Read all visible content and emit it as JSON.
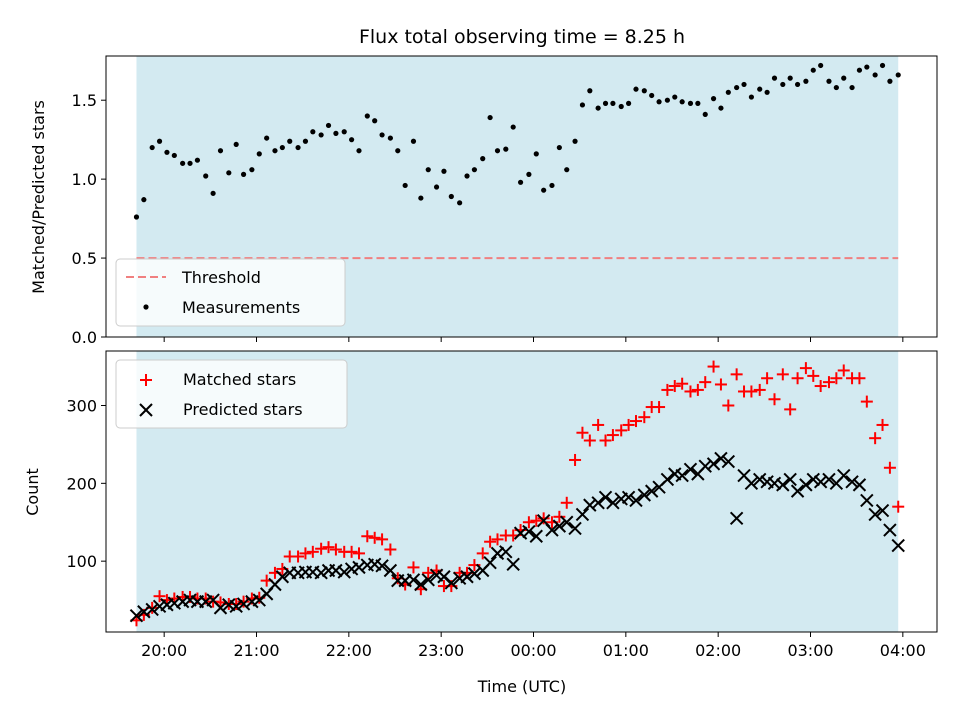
{
  "colors": {
    "band": "#d3eaf1",
    "threshold": "#f08080",
    "matched": "#ff0000",
    "predicted": "#000000",
    "measurement": "#000000"
  },
  "chart_data": [
    {
      "type": "scatter",
      "title": "Flux total observing time = 8.25 h",
      "xlabel": "",
      "ylabel": "Matched/Predicted stars",
      "ylim": [
        0,
        1.78
      ],
      "yticks": [
        "0.0",
        "0.5",
        "1.0",
        "1.5"
      ],
      "yticks_values": [
        0,
        0.5,
        1.0,
        1.5
      ],
      "xlim_hours": [
        19.37,
        28.37
      ],
      "band_hours": [
        19.7,
        27.95
      ],
      "threshold": 0.5,
      "legend": {
        "placement": "lower-left",
        "entries": [
          "Threshold",
          "Measurements"
        ]
      },
      "series": [
        {
          "name": "Measurements",
          "marker": "dot",
          "x": [
            19.7,
            19.78,
            19.87,
            19.95,
            20.03,
            20.11,
            20.2,
            20.28,
            20.36,
            20.45,
            20.53,
            20.61,
            20.7,
            20.78,
            20.86,
            20.95,
            21.03,
            21.11,
            21.2,
            21.28,
            21.36,
            21.45,
            21.53,
            21.61,
            21.7,
            21.78,
            21.86,
            21.95,
            22.03,
            22.11,
            22.2,
            22.28,
            22.36,
            22.45,
            22.53,
            22.61,
            22.7,
            22.78,
            22.86,
            22.95,
            23.03,
            23.11,
            23.2,
            23.28,
            23.36,
            23.45,
            23.53,
            23.61,
            23.7,
            23.78,
            23.86,
            23.95,
            24.03,
            24.11,
            24.2,
            24.28,
            24.36,
            24.45,
            24.53,
            24.61,
            24.7,
            24.78,
            24.86,
            24.95,
            25.03,
            25.11,
            25.2,
            25.28,
            25.36,
            25.45,
            25.53,
            25.61,
            25.7,
            25.78,
            25.86,
            25.95,
            26.03,
            26.11,
            26.2,
            26.28,
            26.36,
            26.45,
            26.53,
            26.61,
            26.7,
            26.78,
            26.86,
            26.95,
            27.03,
            27.11,
            27.2,
            27.28,
            27.36,
            27.45,
            27.53,
            27.61,
            27.7,
            27.78,
            27.86,
            27.95
          ],
          "y": [
            0.76,
            0.87,
            1.2,
            1.24,
            1.17,
            1.15,
            1.1,
            1.1,
            1.12,
            1.02,
            0.91,
            1.18,
            1.04,
            1.22,
            1.03,
            1.06,
            1.16,
            1.26,
            1.18,
            1.2,
            1.24,
            1.2,
            1.24,
            1.3,
            1.28,
            1.34,
            1.29,
            1.3,
            1.25,
            1.18,
            1.4,
            1.37,
            1.28,
            1.26,
            1.18,
            0.96,
            1.24,
            0.88,
            1.06,
            0.95,
            1.05,
            0.89,
            0.85,
            1.02,
            1.06,
            1.13,
            1.39,
            1.18,
            1.19,
            1.33,
            0.98,
            1.03,
            1.16,
            0.93,
            0.96,
            1.2,
            1.06,
            1.24,
            1.47,
            1.56,
            1.45,
            1.48,
            1.48,
            1.46,
            1.48,
            1.57,
            1.56,
            1.53,
            1.49,
            1.5,
            1.52,
            1.49,
            1.48,
            1.48,
            1.41,
            1.51,
            1.45,
            1.55,
            1.58,
            1.6,
            1.52,
            1.57,
            1.55,
            1.64,
            1.6,
            1.64,
            1.6,
            1.62,
            1.69,
            1.72,
            1.62,
            1.58,
            1.64,
            1.58,
            1.69,
            1.71,
            1.66,
            1.72,
            1.62,
            1.66
          ]
        }
      ]
    },
    {
      "type": "scatter",
      "title": "",
      "xlabel": "Time (UTC)",
      "ylabel": "Count",
      "ylim": [
        9,
        370
      ],
      "yticks": [
        "100",
        "200",
        "300"
      ],
      "yticks_values": [
        100,
        200,
        300
      ],
      "xticks": [
        "20:00",
        "21:00",
        "22:00",
        "23:00",
        "00:00",
        "01:00",
        "02:00",
        "03:00",
        "04:00"
      ],
      "xticks_hours": [
        20,
        21,
        22,
        23,
        24,
        25,
        26,
        27,
        28
      ],
      "xlim_hours": [
        19.37,
        28.37
      ],
      "band_hours": [
        19.7,
        27.95
      ],
      "legend": {
        "placement": "upper-left",
        "entries": [
          "Matched stars",
          "Predicted stars"
        ]
      },
      "series": [
        {
          "name": "Matched stars",
          "marker": "plus",
          "x": [
            19.7,
            19.78,
            19.87,
            19.95,
            20.03,
            20.11,
            20.2,
            20.28,
            20.36,
            20.45,
            20.53,
            20.61,
            20.7,
            20.78,
            20.86,
            20.95,
            21.03,
            21.11,
            21.2,
            21.28,
            21.36,
            21.45,
            21.53,
            21.61,
            21.7,
            21.78,
            21.86,
            21.95,
            22.03,
            22.11,
            22.2,
            22.28,
            22.36,
            22.45,
            22.53,
            22.61,
            22.7,
            22.78,
            22.86,
            22.95,
            23.03,
            23.11,
            23.2,
            23.28,
            23.36,
            23.45,
            23.53,
            23.61,
            23.7,
            23.78,
            23.86,
            23.95,
            24.03,
            24.11,
            24.2,
            24.28,
            24.36,
            24.45,
            24.53,
            24.61,
            24.7,
            24.78,
            24.86,
            24.95,
            25.03,
            25.11,
            25.2,
            25.28,
            25.36,
            25.45,
            25.53,
            25.61,
            25.7,
            25.78,
            25.86,
            25.95,
            26.03,
            26.11,
            26.2,
            26.28,
            26.36,
            26.45,
            26.53,
            26.61,
            26.7,
            26.78,
            26.86,
            26.95,
            27.03,
            27.11,
            27.2,
            27.28,
            27.36,
            27.45,
            27.53,
            27.61,
            27.7,
            27.78,
            27.86,
            27.95
          ],
          "y": [
            24,
            31,
            40,
            55,
            50,
            52,
            54,
            54,
            52,
            52,
            48,
            47,
            45,
            45,
            48,
            52,
            53,
            75,
            85,
            90,
            106,
            106,
            110,
            112,
            116,
            118,
            115,
            112,
            112,
            110,
            132,
            130,
            128,
            115,
            78,
            70,
            92,
            64,
            85,
            88,
            68,
            68,
            85,
            85,
            95,
            110,
            125,
            128,
            133,
            133,
            140,
            150,
            152,
            155,
            150,
            157,
            175,
            230,
            265,
            255,
            275,
            255,
            262,
            268,
            275,
            280,
            285,
            298,
            298,
            320,
            325,
            328,
            318,
            320,
            330,
            350,
            327,
            300,
            340,
            318,
            318,
            320,
            335,
            308,
            340,
            295,
            335,
            348,
            338,
            325,
            330,
            335,
            345,
            335,
            335,
            305,
            258,
            275,
            220,
            170
          ]
        },
        {
          "name": "Predicted stars",
          "marker": "x",
          "x": [
            19.7,
            19.78,
            19.87,
            19.95,
            20.03,
            20.11,
            20.2,
            20.28,
            20.36,
            20.45,
            20.53,
            20.61,
            20.7,
            20.78,
            20.86,
            20.95,
            21.03,
            21.11,
            21.2,
            21.28,
            21.36,
            21.45,
            21.53,
            21.61,
            21.7,
            21.78,
            21.86,
            21.95,
            22.03,
            22.11,
            22.2,
            22.28,
            22.36,
            22.45,
            22.53,
            22.61,
            22.7,
            22.78,
            22.86,
            22.95,
            23.03,
            23.11,
            23.2,
            23.28,
            23.36,
            23.45,
            23.53,
            23.61,
            23.7,
            23.78,
            23.86,
            23.95,
            24.03,
            24.11,
            24.2,
            24.28,
            24.36,
            24.45,
            24.53,
            24.61,
            24.7,
            24.78,
            24.86,
            24.95,
            25.03,
            25.11,
            25.2,
            25.28,
            25.36,
            25.45,
            25.53,
            25.61,
            25.7,
            25.78,
            25.86,
            25.95,
            26.03,
            26.11,
            26.2,
            26.28,
            26.36,
            26.45,
            26.53,
            26.61,
            26.7,
            26.78,
            26.86,
            26.95,
            27.03,
            27.11,
            27.2,
            27.28,
            27.36,
            27.45,
            27.53,
            27.61,
            27.7,
            27.78,
            27.86,
            27.95
          ],
          "y": [
            30,
            35,
            38,
            42,
            44,
            46,
            48,
            50,
            48,
            48,
            50,
            40,
            44,
            42,
            45,
            48,
            50,
            58,
            70,
            80,
            85,
            85,
            86,
            86,
            85,
            88,
            88,
            86,
            90,
            92,
            95,
            96,
            94,
            88,
            75,
            75,
            76,
            70,
            76,
            82,
            80,
            72,
            78,
            80,
            84,
            88,
            98,
            110,
            112,
            96,
            136,
            138,
            132,
            152,
            140,
            145,
            150,
            142,
            160,
            172,
            175,
            182,
            175,
            180,
            182,
            178,
            185,
            190,
            195,
            205,
            212,
            210,
            218,
            212,
            222,
            225,
            232,
            228,
            155,
            210,
            200,
            205,
            202,
            200,
            198,
            205,
            190,
            198,
            205,
            202,
            205,
            200,
            210,
            202,
            198,
            178,
            160,
            165,
            140,
            120
          ]
        }
      ]
    }
  ]
}
